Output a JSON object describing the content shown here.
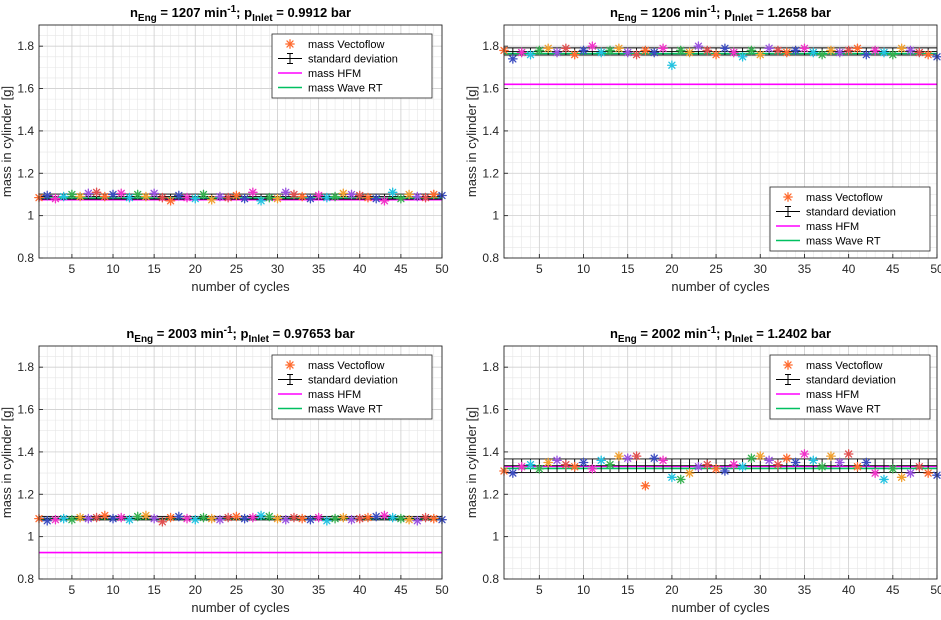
{
  "chart_data": [
    {
      "type": "scatter",
      "title": {
        "n_prefix": "n",
        "n_sub": "Eng",
        "speed_text": " = 1207 min",
        "exp": "-1",
        "mid": "; p",
        "p_sub": "Inlet",
        "p_text": " = 0.9912 bar"
      },
      "xlabel": "number of cycles",
      "ylabel": "mass in cylinder [g]",
      "xlim": [
        1,
        50
      ],
      "ylim": [
        0.8,
        1.9
      ],
      "xticks": [
        5,
        10,
        15,
        20,
        25,
        30,
        35,
        40,
        45,
        50
      ],
      "yticks": [
        0.8,
        1,
        1.2,
        1.4,
        1.6,
        1.8
      ],
      "ytick_labels": [
        "0.8",
        "1",
        "1.2",
        "1.4",
        "1.6",
        "1.8"
      ],
      "grid": true,
      "legend_position": "top-right",
      "legend": [
        "mass Vectoflow",
        "standard deviation",
        "mass HFM",
        "mass Wave RT"
      ],
      "series": [
        {
          "name": "mass Vectoflow",
          "marker": "asterisk",
          "x_start": 1,
          "values": [
            1.085,
            1.095,
            1.08,
            1.09,
            1.1,
            1.09,
            1.105,
            1.11,
            1.09,
            1.1,
            1.105,
            1.085,
            1.1,
            1.09,
            1.105,
            1.085,
            1.07,
            1.095,
            1.085,
            1.08,
            1.1,
            1.075,
            1.09,
            1.085,
            1.095,
            1.08,
            1.11,
            1.07,
            1.085,
            1.08,
            1.11,
            1.1,
            1.09,
            1.08,
            1.095,
            1.085,
            1.09,
            1.105,
            1.1,
            1.095,
            1.085,
            1.08,
            1.07,
            1.11,
            1.08,
            1.1,
            1.09,
            1.085,
            1.1,
            1.095
          ]
        },
        {
          "name": "standard deviation",
          "mean": 1.09,
          "sd": 0.012
        },
        {
          "name": "mass HFM",
          "value": 1.075
        },
        {
          "name": "mass Wave RT",
          "value": 1.083
        }
      ]
    },
    {
      "type": "scatter",
      "title": {
        "n_prefix": "n",
        "n_sub": "Eng",
        "speed_text": " = 1206 min",
        "exp": "-1",
        "mid": "; p",
        "p_sub": "Inlet",
        "p_text": " = 1.2658 bar"
      },
      "xlabel": "number of cycles",
      "ylabel": "mass in cylinder [g]",
      "xlim": [
        1,
        50
      ],
      "ylim": [
        0.8,
        1.9
      ],
      "xticks": [
        5,
        10,
        15,
        20,
        25,
        30,
        35,
        40,
        45,
        50
      ],
      "yticks": [
        0.8,
        1,
        1.2,
        1.4,
        1.6,
        1.8
      ],
      "ytick_labels": [
        "0.8",
        "1",
        "1.2",
        "1.4",
        "1.6",
        "1.8"
      ],
      "grid": true,
      "legend_position": "bottom-right",
      "legend": [
        "mass Vectoflow",
        "standard deviation",
        "mass HFM",
        "mass Wave RT"
      ],
      "series": [
        {
          "name": "mass Vectoflow",
          "marker": "asterisk",
          "x_start": 1,
          "values": [
            1.78,
            1.74,
            1.77,
            1.76,
            1.78,
            1.79,
            1.77,
            1.79,
            1.76,
            1.78,
            1.8,
            1.77,
            1.78,
            1.79,
            1.77,
            1.76,
            1.78,
            1.77,
            1.79,
            1.71,
            1.78,
            1.77,
            1.8,
            1.78,
            1.76,
            1.79,
            1.77,
            1.75,
            1.78,
            1.76,
            1.79,
            1.78,
            1.77,
            1.78,
            1.79,
            1.77,
            1.76,
            1.78,
            1.77,
            1.78,
            1.79,
            1.76,
            1.78,
            1.77,
            1.76,
            1.79,
            1.78,
            1.77,
            1.76,
            1.75
          ]
        },
        {
          "name": "standard deviation",
          "mean": 1.775,
          "sd": 0.017
        },
        {
          "name": "mass HFM",
          "value": 1.62
        },
        {
          "name": "mass Wave RT",
          "value": 1.765
        }
      ]
    },
    {
      "type": "scatter",
      "title": {
        "n_prefix": "n",
        "n_sub": "Eng",
        "speed_text": " = 2003 min",
        "exp": "-1",
        "mid": "; p",
        "p_sub": "Inlet",
        "p_text": " = 0.97653 bar"
      },
      "xlabel": "number of cycles",
      "ylabel": "mass in cylinder [g]",
      "xlim": [
        1,
        50
      ],
      "ylim": [
        0.8,
        1.9
      ],
      "xticks": [
        5,
        10,
        15,
        20,
        25,
        30,
        35,
        40,
        45,
        50
      ],
      "yticks": [
        0.8,
        1,
        1.2,
        1.4,
        1.6,
        1.8
      ],
      "ytick_labels": [
        "0.8",
        "1",
        "1.2",
        "1.4",
        "1.6",
        "1.8"
      ],
      "grid": true,
      "legend_position": "top-right",
      "legend": [
        "mass Vectoflow",
        "standard deviation",
        "mass HFM",
        "mass Wave RT"
      ],
      "series": [
        {
          "name": "mass Vectoflow",
          "marker": "asterisk",
          "x_start": 1,
          "values": [
            1.085,
            1.075,
            1.08,
            1.085,
            1.08,
            1.09,
            1.085,
            1.09,
            1.1,
            1.085,
            1.09,
            1.08,
            1.095,
            1.1,
            1.085,
            1.07,
            1.09,
            1.095,
            1.085,
            1.08,
            1.09,
            1.085,
            1.08,
            1.09,
            1.095,
            1.085,
            1.09,
            1.1,
            1.095,
            1.085,
            1.08,
            1.09,
            1.085,
            1.08,
            1.09,
            1.075,
            1.085,
            1.09,
            1.08,
            1.085,
            1.09,
            1.095,
            1.1,
            1.09,
            1.085,
            1.08,
            1.075,
            1.09,
            1.085,
            1.08
          ]
        },
        {
          "name": "standard deviation",
          "mean": 1.087,
          "sd": 0.008
        },
        {
          "name": "mass HFM",
          "value": 0.925
        },
        {
          "name": "mass Wave RT",
          "value": 1.082
        }
      ]
    },
    {
      "type": "scatter",
      "title": {
        "n_prefix": "n",
        "n_sub": "Eng",
        "speed_text": " = 2002 min",
        "exp": "-1",
        "mid": "; p",
        "p_sub": "Inlet",
        "p_text": " = 1.2402 bar"
      },
      "xlabel": "number of cycles",
      "ylabel": "mass in cylinder [g]",
      "xlim": [
        1,
        50
      ],
      "ylim": [
        0.8,
        1.9
      ],
      "xticks": [
        5,
        10,
        15,
        20,
        25,
        30,
        35,
        40,
        45,
        50
      ],
      "yticks": [
        0.8,
        1,
        1.2,
        1.4,
        1.6,
        1.8
      ],
      "ytick_labels": [
        "0.8",
        "1",
        "1.2",
        "1.4",
        "1.6",
        "1.8"
      ],
      "grid": true,
      "legend_position": "top-right",
      "legend": [
        "mass Vectoflow",
        "standard deviation",
        "mass HFM",
        "mass Wave RT"
      ],
      "series": [
        {
          "name": "mass Vectoflow",
          "marker": "asterisk",
          "x_start": 1,
          "values": [
            1.31,
            1.3,
            1.33,
            1.34,
            1.32,
            1.35,
            1.36,
            1.34,
            1.33,
            1.35,
            1.32,
            1.36,
            1.34,
            1.38,
            1.37,
            1.38,
            1.24,
            1.37,
            1.36,
            1.28,
            1.27,
            1.3,
            1.33,
            1.34,
            1.32,
            1.31,
            1.34,
            1.33,
            1.37,
            1.38,
            1.36,
            1.34,
            1.37,
            1.35,
            1.39,
            1.36,
            1.33,
            1.38,
            1.35,
            1.39,
            1.33,
            1.35,
            1.3,
            1.27,
            1.32,
            1.28,
            1.3,
            1.33,
            1.3,
            1.29
          ]
        },
        {
          "name": "standard deviation",
          "mean": 1.335,
          "sd": 0.032
        },
        {
          "name": "mass HFM",
          "value": 1.332
        },
        {
          "name": "mass Wave RT",
          "value": 1.322
        }
      ]
    }
  ],
  "colors": {
    "vectoflow_palette": [
      "#ff6a2e",
      "#3b4cc0",
      "#f033c8",
      "#22c2e0",
      "#35b04f",
      "#f0a030",
      "#9a52e0",
      "#e05050"
    ],
    "legend_marker": "#ff6a2e",
    "std": "#000000",
    "hfm": "#ff00ff",
    "wave": "#00c060",
    "grid": "#e6e6e6",
    "axis": "#262626"
  }
}
